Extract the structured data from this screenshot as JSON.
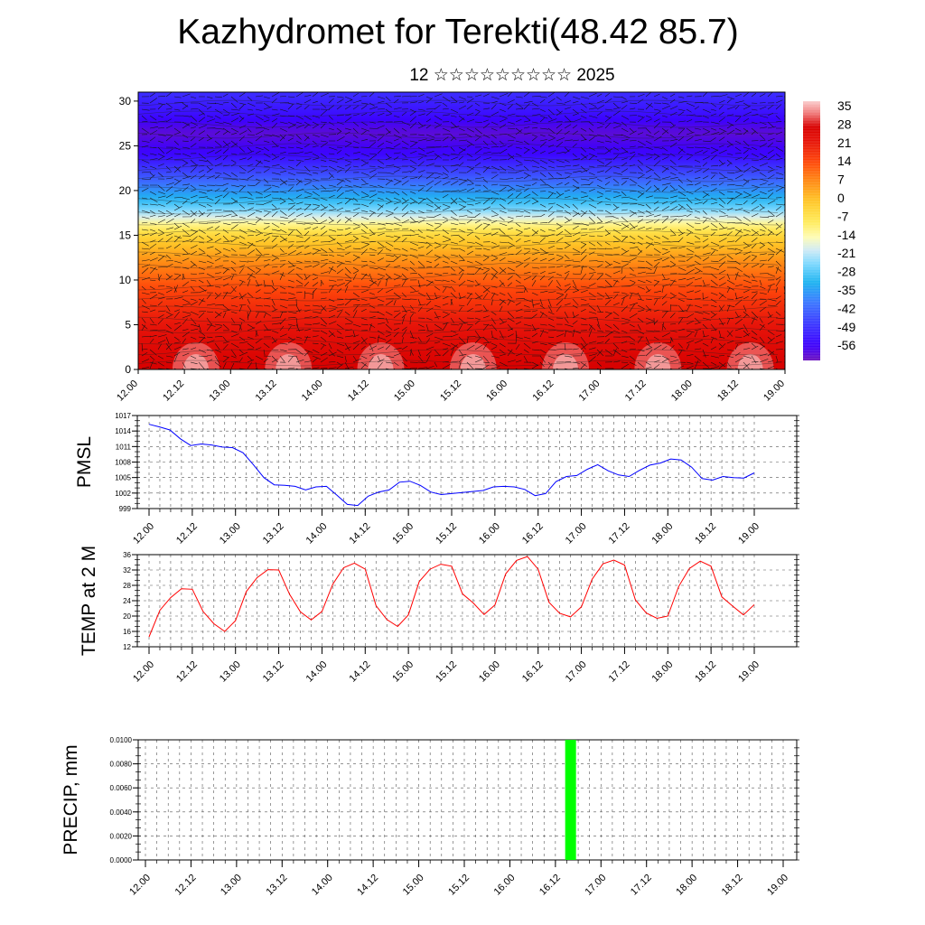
{
  "header": {
    "title": "Kazhydromet for Terekti(48.42 85.7)",
    "subtitle": "12 ☆☆☆☆☆☆☆☆☆ 2025"
  },
  "colors": {
    "pmsl_line": "#0000ff",
    "temp_line": "#ff0000",
    "precip_bar": "#00ff00",
    "grid": "#555555"
  },
  "chart_data": [
    {
      "id": "section",
      "type": "heatmap",
      "title": "",
      "xlabel": "",
      "ylabel": "",
      "x_ticks": [
        "12.00",
        "12.12",
        "13.00",
        "13.12",
        "14.00",
        "14.12",
        "15.00",
        "15.12",
        "16.00",
        "16.12",
        "17.00",
        "17.12",
        "18.00",
        "18.12",
        "19.00"
      ],
      "y_ticks": [
        0,
        5,
        10,
        15,
        20,
        25,
        30
      ],
      "ylim": [
        0,
        31
      ],
      "colorbar": {
        "labels": [
          "35",
          "28",
          "21",
          "14",
          "7",
          "0",
          "-7",
          "-14",
          "-21",
          "-28",
          "-35",
          "-42",
          "-49",
          "-56"
        ],
        "range": [
          -63,
          40
        ]
      },
      "profile": [
        {
          "h": 0,
          "t": 30
        },
        {
          "h": 5,
          "t": 24
        },
        {
          "h": 9,
          "t": 16
        },
        {
          "h": 12,
          "t": 8
        },
        {
          "h": 15,
          "t": -3
        },
        {
          "h": 16.3,
          "t": -12
        },
        {
          "h": 18,
          "t": -26
        },
        {
          "h": 21,
          "t": -42
        },
        {
          "h": 24,
          "t": -56
        },
        {
          "h": 26.5,
          "t": -61
        },
        {
          "h": 28.5,
          "t": -55
        },
        {
          "h": 31,
          "t": -50
        }
      ],
      "vectors": "wind-arrows"
    },
    {
      "id": "pmsl",
      "type": "line",
      "ylabel": "PMSL",
      "ylim": [
        999,
        1017
      ],
      "y_ticks": [
        999,
        1002,
        1005,
        1008,
        1011,
        1014,
        1017
      ],
      "x_ticks": [
        "12.00",
        "12.12",
        "13.00",
        "13.12",
        "14.00",
        "14.12",
        "15.00",
        "15.12",
        "16.00",
        "16.12",
        "17.00",
        "17.12",
        "18.00",
        "18.12",
        "19.00"
      ],
      "series": [
        {
          "values": [
            1015.3,
            1014.8,
            1014.2,
            1012.5,
            1011.2,
            1011.5,
            1011.3,
            1010.9,
            1010.8,
            1009.8,
            1007.5,
            1005.0,
            1003.6,
            1003.5,
            1003.3,
            1002.6,
            1003.2,
            1003.3,
            1001.6,
            999.8,
            999.6,
            1001.4,
            1002.2,
            1002.6,
            1004.1,
            1004.3,
            1003.5,
            1002.2,
            1001.7,
            1001.9,
            1002.1,
            1002.3,
            1002.5,
            1003.2,
            1003.3,
            1003.2,
            1002.7,
            1001.5,
            1001.9,
            1004.2,
            1005.2,
            1005.4,
            1006.6,
            1007.5,
            1006.3,
            1005.5,
            1005.2,
            1006.4,
            1007.4,
            1007.8,
            1008.6,
            1008.4,
            1007.0,
            1004.8,
            1004.5,
            1005.2,
            1005.0,
            1004.9,
            1005.9
          ]
        }
      ]
    },
    {
      "id": "temp",
      "type": "line",
      "ylabel": "TEMP at 2 M",
      "ylim": [
        12,
        36
      ],
      "y_ticks": [
        12,
        16,
        20,
        24,
        28,
        32,
        36
      ],
      "x_ticks": [
        "12.00",
        "12.12",
        "13.00",
        "13.12",
        "14.00",
        "14.12",
        "15.00",
        "15.12",
        "16.00",
        "16.12",
        "17.00",
        "17.12",
        "18.00",
        "18.12",
        "19.00"
      ],
      "series": [
        {
          "values": [
            14.6,
            21.5,
            24.8,
            27.1,
            27.0,
            21.2,
            18.0,
            16.0,
            18.8,
            26.4,
            30.0,
            32.1,
            32.0,
            25.7,
            21.1,
            19.0,
            21.2,
            28.3,
            32.6,
            33.8,
            32.2,
            22.7,
            19.1,
            17.3,
            20.3,
            29.0,
            32.2,
            33.5,
            33.0,
            25.8,
            23.4,
            20.4,
            22.9,
            31.0,
            34.5,
            35.5,
            32.2,
            23.6,
            20.7,
            19.8,
            22.4,
            29.6,
            33.6,
            34.6,
            33.3,
            24.2,
            20.8,
            19.4,
            20.0,
            27.7,
            32.4,
            34.3,
            33.0,
            25.0,
            22.6,
            20.3,
            23.0
          ]
        }
      ]
    },
    {
      "id": "precip",
      "type": "bar",
      "ylabel": "PRECIP, mm",
      "ylim": [
        0,
        0.01
      ],
      "y_ticks": [
        "0.0000",
        "0.0020",
        "0.0040",
        "0.0060",
        "0.0080",
        "0.0100"
      ],
      "x_ticks": [
        "12.00",
        "12.12",
        "13.00",
        "13.12",
        "14.00",
        "14.12",
        "15.00",
        "15.12",
        "16.00",
        "16.12",
        "17.00",
        "17.12",
        "18.00",
        "18.12",
        "19.00"
      ],
      "bars": [
        {
          "x_hours": 112,
          "value": 0.01
        }
      ]
    }
  ]
}
